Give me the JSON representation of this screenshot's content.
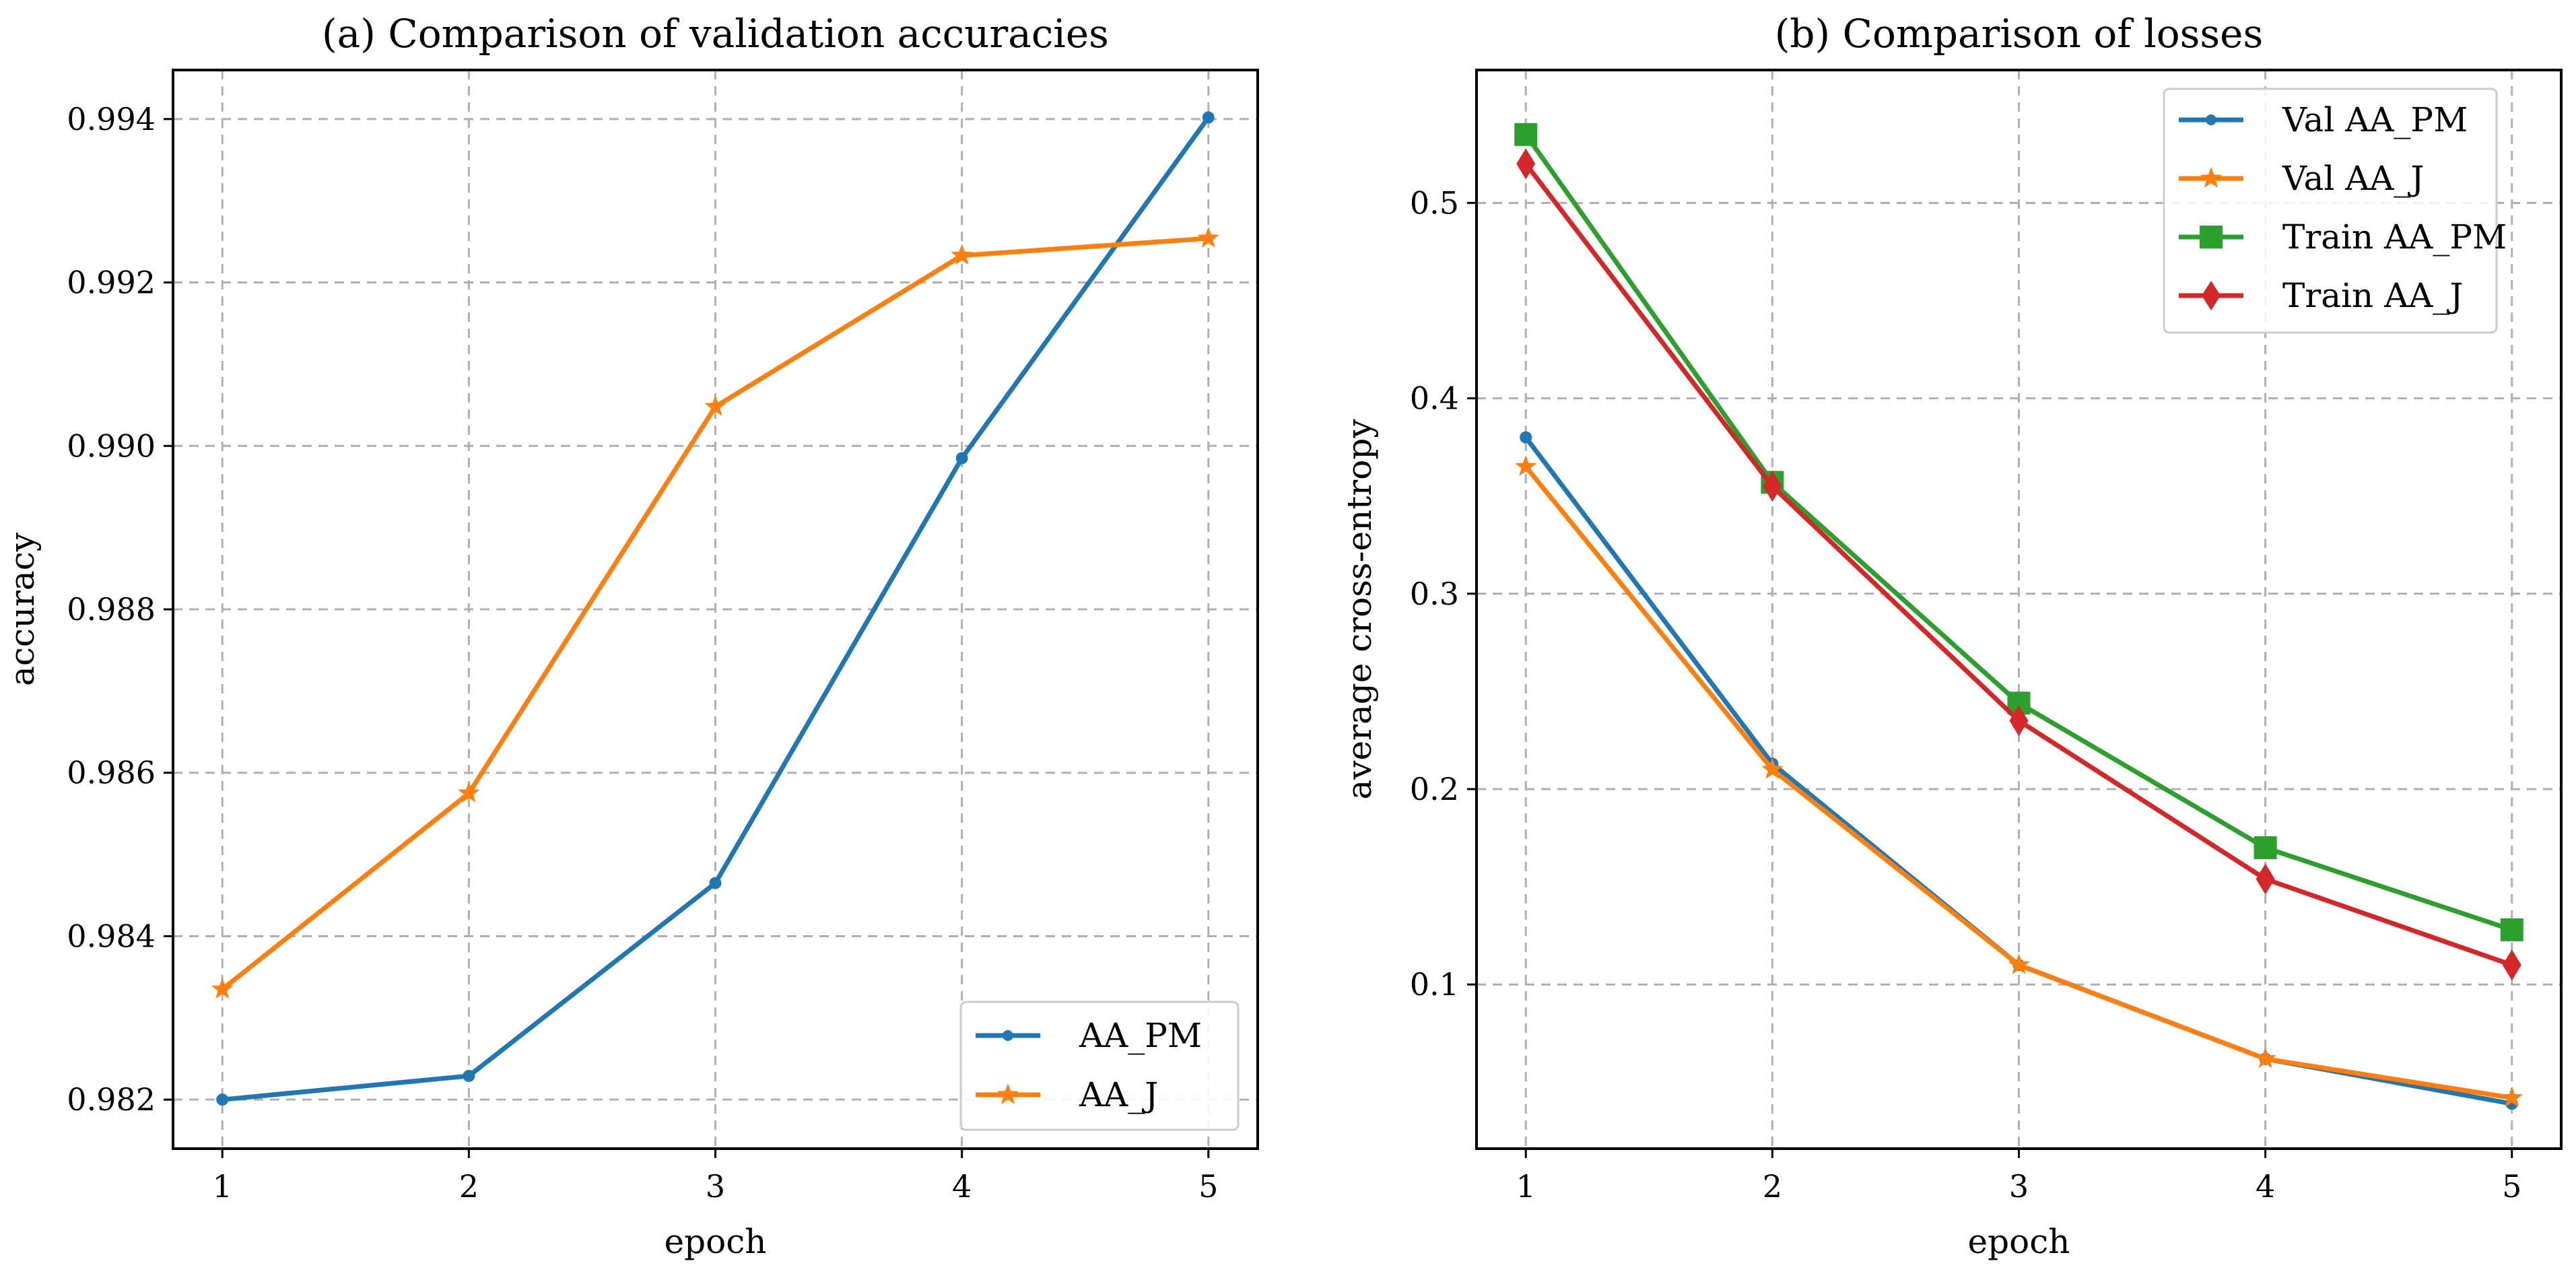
{
  "colors": {
    "blue": "#1f77b4",
    "orange": "#ff7f0e",
    "green": "#2ca02c",
    "red": "#d62728"
  },
  "chart_data": [
    {
      "type": "line",
      "title": "(a) Comparison of validation accuracies",
      "xlabel": "epoch",
      "ylabel": "accuracy",
      "x": [
        1,
        2,
        3,
        4,
        5
      ],
      "xticks": [
        "1",
        "2",
        "3",
        "4",
        "5"
      ],
      "yticks": [
        0.982,
        0.984,
        0.986,
        0.988,
        0.99,
        0.992,
        0.994
      ],
      "ytick_labels": [
        "0.982",
        "0.984",
        "0.986",
        "0.988",
        "0.990",
        "0.992",
        "0.994"
      ],
      "xlim": [
        0.8,
        5.2
      ],
      "ylim": [
        0.9814,
        0.9946
      ],
      "grid": true,
      "legend_position": "lower-right",
      "series": [
        {
          "name": "AA_PM",
          "color": "#1f77b4",
          "marker": "circle",
          "values": [
            0.982,
            0.98229,
            0.98465,
            0.98985,
            0.99402
          ]
        },
        {
          "name": "AA_J",
          "color": "#ff7f0e",
          "marker": "star",
          "values": [
            0.98335,
            0.98575,
            0.99048,
            0.99233,
            0.99254
          ]
        }
      ]
    },
    {
      "type": "line",
      "title": "(b) Comparison of losses",
      "xlabel": "epoch",
      "ylabel": "average cross-entropy",
      "x": [
        1,
        2,
        3,
        4,
        5
      ],
      "xticks": [
        "1",
        "2",
        "3",
        "4",
        "5"
      ],
      "yticks": [
        0.1,
        0.2,
        0.3,
        0.4,
        0.5
      ],
      "ytick_labels": [
        "0.1",
        "0.2",
        "0.3",
        "0.4",
        "0.5"
      ],
      "xlim": [
        0.8,
        5.2
      ],
      "ylim": [
        0.016,
        0.568
      ],
      "grid": true,
      "legend_position": "top-right",
      "series": [
        {
          "name": "Val AA_PM",
          "color": "#1f77b4",
          "marker": "circle",
          "values": [
            0.38,
            0.213,
            0.11,
            0.062,
            0.039
          ]
        },
        {
          "name": "Val AA_J",
          "color": "#ff7f0e",
          "marker": "star",
          "values": [
            0.365,
            0.21,
            0.11,
            0.062,
            0.042
          ]
        },
        {
          "name": "Train AA_PM",
          "color": "#2ca02c",
          "marker": "square",
          "values": [
            0.535,
            0.357,
            0.244,
            0.17,
            0.128
          ]
        },
        {
          "name": "Train AA_J",
          "color": "#d62728",
          "marker": "diamond",
          "values": [
            0.52,
            0.355,
            0.235,
            0.154,
            0.11
          ]
        }
      ]
    }
  ]
}
